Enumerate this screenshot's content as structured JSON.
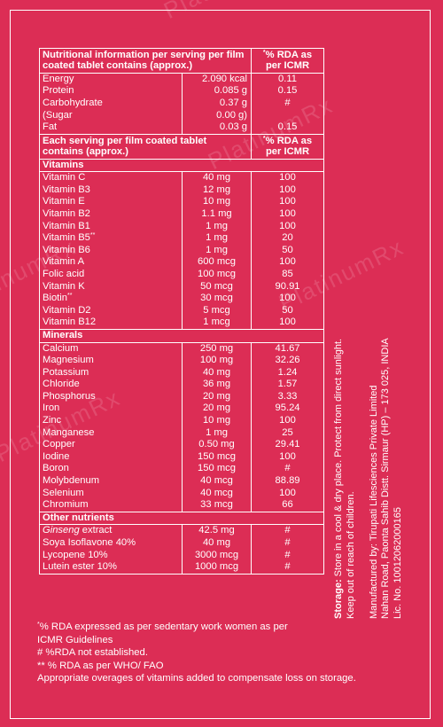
{
  "watermark": "PlatinumRx",
  "table": {
    "header1": {
      "left": "Nutritional information per serving per film coated tablet contains (approx.)",
      "right_mark": "*",
      "right": "% RDA as per ICMR"
    },
    "macros": [
      {
        "name": "Energy",
        "amount": "2.090 kcal",
        "rda": "0.11"
      },
      {
        "name": "Protein",
        "amount": "0.085 g",
        "rda": "0.15"
      },
      {
        "name": "Carbohydrate",
        "amount": "0.37 g",
        "rda": "#"
      },
      {
        "name": "(Sugar",
        "amount": "0.00 g)",
        "rda": ""
      },
      {
        "name": "Fat",
        "amount": "0.03 g",
        "rda": "0.15"
      }
    ],
    "header2": {
      "left": "Each serving per film coated tablet contains (approx.)",
      "right_mark": "*",
      "right": "% RDA as per ICMR"
    },
    "vitamins_label": "Vitamins",
    "vitamins": [
      {
        "name": "Vitamin C",
        "mark": "",
        "amount": "40 mg",
        "rda": "100"
      },
      {
        "name": "Vitamin B3",
        "mark": "",
        "amount": "12 mg",
        "rda": "100"
      },
      {
        "name": "Vitamin E",
        "mark": "",
        "amount": "10 mg",
        "rda": "100"
      },
      {
        "name": "Vitamin B2",
        "mark": "",
        "amount": "1.1 mg",
        "rda": "100"
      },
      {
        "name": "Vitamin B1",
        "mark": "",
        "amount": "1 mg",
        "rda": "100"
      },
      {
        "name": "Vitamin B5",
        "mark": "**",
        "amount": "1 mg",
        "rda": "20"
      },
      {
        "name": "Vitamin B6",
        "mark": "",
        "amount": "1 mg",
        "rda": "50"
      },
      {
        "name": "Vitamin A",
        "mark": "",
        "amount": "600 mcg",
        "rda": "100"
      },
      {
        "name": "Folic acid",
        "mark": "",
        "amount": "100 mcg",
        "rda": "85"
      },
      {
        "name": "Vitamin K",
        "mark": "",
        "amount": "50 mcg",
        "rda": "90.91"
      },
      {
        "name": "Biotin",
        "mark": "**",
        "amount": "30 mcg",
        "rda": "100"
      },
      {
        "name": "Vitamin D2",
        "mark": "",
        "amount": "5 mcg",
        "rda": "50"
      },
      {
        "name": "Vitamin B12",
        "mark": "",
        "amount": "1 mcg",
        "rda": "100"
      }
    ],
    "minerals_label": "Minerals",
    "minerals": [
      {
        "name": "Calcium",
        "amount": "250 mg",
        "rda": "41.67"
      },
      {
        "name": "Magnesium",
        "amount": "100 mg",
        "rda": "32.26"
      },
      {
        "name": "Potassium",
        "amount": "40 mg",
        "rda": "1.24"
      },
      {
        "name": "Chloride",
        "amount": "36 mg",
        "rda": "1.57"
      },
      {
        "name": "Phosphorus",
        "amount": "20 mg",
        "rda": "3.33"
      },
      {
        "name": "Iron",
        "amount": "20 mg",
        "rda": "95.24"
      },
      {
        "name": "Zinc",
        "amount": "10 mg",
        "rda": "100"
      },
      {
        "name": "Manganese",
        "amount": "1 mg",
        "rda": "25"
      },
      {
        "name": "Copper",
        "amount": "0.50 mg",
        "rda": "29.41"
      },
      {
        "name": "Iodine",
        "amount": "150 mcg",
        "rda": "100"
      },
      {
        "name": "Boron",
        "amount": "150 mcg",
        "rda": "#"
      },
      {
        "name": "Molybdenum",
        "amount": "40 mcg",
        "rda": "88.89"
      },
      {
        "name": "Selenium",
        "amount": "40 mcg",
        "rda": "100"
      },
      {
        "name": "Chromium",
        "amount": "33 mcg",
        "rda": "66"
      }
    ],
    "other_label": "Other nutrients",
    "other": [
      {
        "name_italic": "Ginseng",
        "name_rest": " extract",
        "amount": "42.5 mg",
        "rda": "#"
      },
      {
        "name_italic": "",
        "name_rest": "Soya Isoflavone 40%",
        "amount": "40 mg",
        "rda": "#"
      },
      {
        "name_italic": "",
        "name_rest": "Lycopene 10%",
        "amount": "3000 mcg",
        "rda": "#"
      },
      {
        "name_italic": "",
        "name_rest": "Lutein ester 10%",
        "amount": "1000 mcg",
        "rda": "#"
      }
    ]
  },
  "footnotes": {
    "rda_mark": "*",
    "rda_line1": "% RDA expressed as per sedentary work women as per",
    "rda_line2": "ICMR Guidelines",
    "hash": "# %RDA not established.",
    "who": "** % RDA as per WHO/ FAO",
    "overage": "Appropriate overages of vitamins added to compensate loss on storage."
  },
  "side": {
    "storage_label": "Storage:",
    "storage_text": " Store in a cool & dry place. Protect from direct sunlight.",
    "storage_text2": "Keep out of reach of children.",
    "mfg1": "Manufactured by: Tirupati Lifesciences Private Limited",
    "mfg2": "Nahan Road, Paonta Sahib Distt. Sirmaur (HP) – 173 025, INDIA",
    "mfg3": "Lic. No. 10012062000165"
  }
}
